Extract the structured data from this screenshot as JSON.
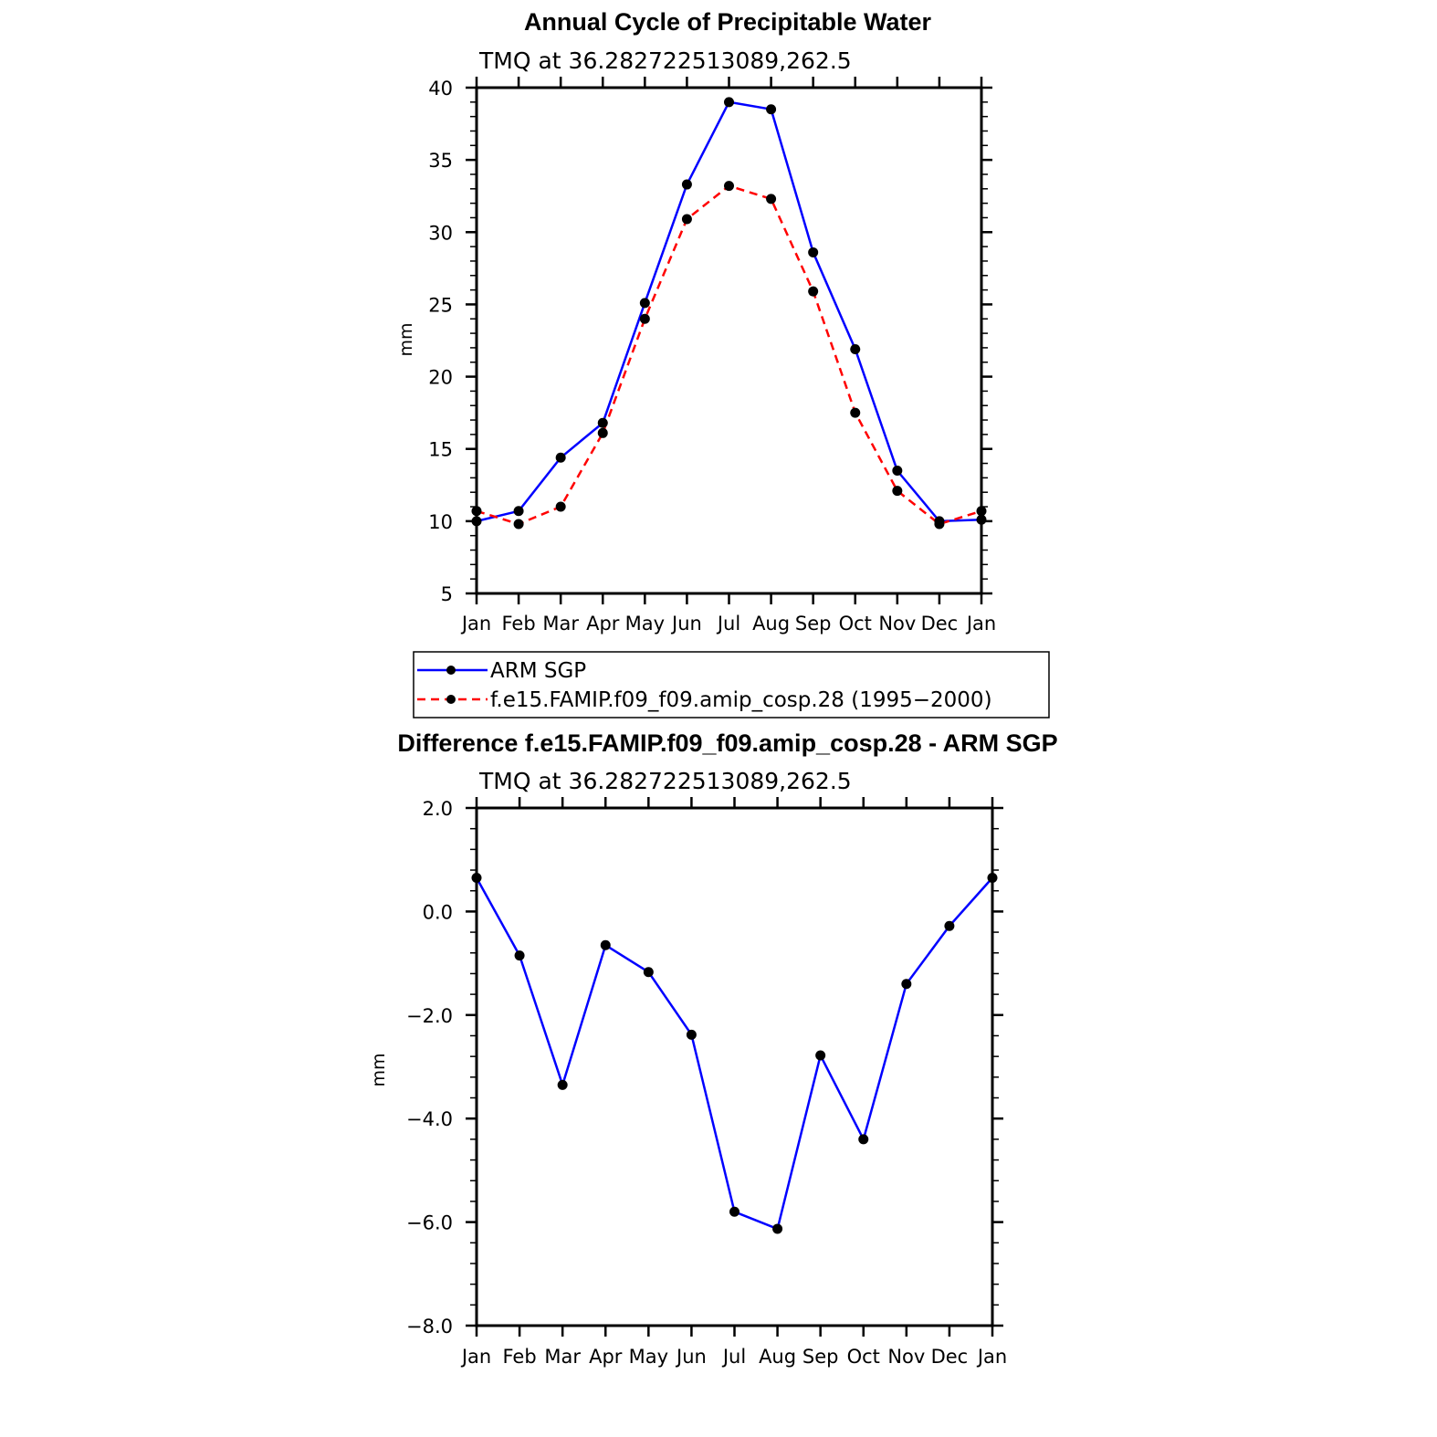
{
  "chart_data": [
    {
      "type": "line",
      "title": "Annual Cycle of Precipitable Water",
      "subtitle": "TMQ at 36.282722513089,262.5",
      "xlabel": "",
      "ylabel": "mm",
      "categories": [
        "Jan",
        "Feb",
        "Mar",
        "Apr",
        "May",
        "Jun",
        "Jul",
        "Aug",
        "Sep",
        "Oct",
        "Nov",
        "Dec",
        "Jan"
      ],
      "ylim": [
        5,
        40
      ],
      "yticks": [
        5,
        10,
        15,
        20,
        25,
        30,
        35,
        40
      ],
      "ytick_labels": [
        "5",
        "10",
        "15",
        "20",
        "25",
        "30",
        "35",
        "40"
      ],
      "series": [
        {
          "name": "ARM SGP",
          "color": "#0000ff",
          "dash": "solid",
          "values": [
            10.0,
            10.7,
            14.4,
            16.8,
            25.1,
            33.3,
            39.0,
            38.5,
            28.6,
            21.9,
            13.5,
            10.0,
            10.1
          ]
        },
        {
          "name": "f.e15.FAMIP.f09_f09.amip_cosp.28 (1995−2000)",
          "color": "#ff0000",
          "dash": "dashed",
          "values": [
            10.7,
            9.8,
            11.0,
            16.1,
            24.0,
            30.9,
            33.2,
            32.3,
            25.9,
            17.5,
            12.1,
            9.8,
            10.7
          ]
        }
      ],
      "legend": "below"
    },
    {
      "type": "line",
      "title": "Difference f.e15.FAMIP.f09_f09.amip_cosp.28 - ARM SGP",
      "subtitle": "TMQ at 36.282722513089,262.5",
      "xlabel": "",
      "ylabel": "mm",
      "categories": [
        "Jan",
        "Feb",
        "Mar",
        "Apr",
        "May",
        "Jun",
        "Jul",
        "Aug",
        "Sep",
        "Oct",
        "Nov",
        "Dec",
        "Jan"
      ],
      "ylim": [
        -8,
        2
      ],
      "yticks": [
        -8,
        -6,
        -4,
        -2,
        0,
        2
      ],
      "ytick_labels": [
        "−8.0",
        "−6.0",
        "−4.0",
        "−2.0",
        "0.0",
        "2.0"
      ],
      "series": [
        {
          "name": "Difference",
          "color": "#0000ff",
          "dash": "solid",
          "values": [
            0.65,
            -0.85,
            -3.35,
            -0.65,
            -1.17,
            -2.38,
            -5.8,
            -6.13,
            -2.78,
            -4.4,
            -1.4,
            -0.28,
            0.65
          ]
        }
      ]
    }
  ]
}
